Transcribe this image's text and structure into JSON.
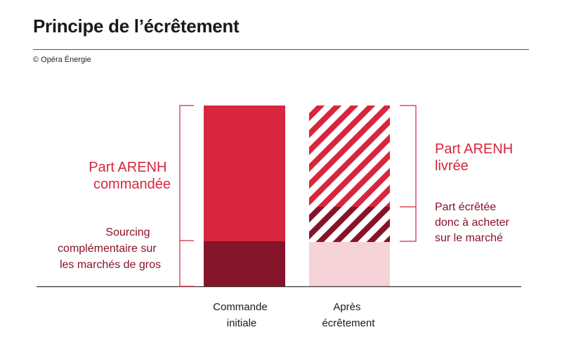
{
  "title": "Principe de l’écrêtement",
  "copyright": "© Opéra Énergie",
  "colors": {
    "arenh": "#d7263d",
    "arenh_text": "#d7263d",
    "dark": "#84142a",
    "dark_text": "#8a1029",
    "light_pink": "#f6d3d8",
    "stripe_bg": "#ffffff",
    "axis": "#333333",
    "bracket": "#d7263d",
    "category_text": "#1a1a1a"
  },
  "left_bar": {
    "category_lines": [
      "Commande",
      "initiale"
    ],
    "top_segment": "Part ARENH commandée",
    "bottom_segment": "Sourcing complémentaire sur les marchés de gros"
  },
  "right_bar": {
    "category_lines": [
      "Après",
      "écrêtement"
    ],
    "top_segment": "Part ARENH livrée",
    "middle_segment": "Part écrêtée donc à acheter sur le marché",
    "bottom_segment": ""
  },
  "labels": {
    "left_top_lines": [
      "Part ARENH",
      "commandée"
    ],
    "left_bottom_lines": [
      "Sourcing",
      "complémentaire sur",
      "les marchés de gros"
    ],
    "right_top_lines": [
      "Part ARENH",
      "livrée"
    ],
    "right_middle_lines": [
      "Part écrêtée",
      "donc à acheter",
      "sur le marché"
    ]
  }
}
